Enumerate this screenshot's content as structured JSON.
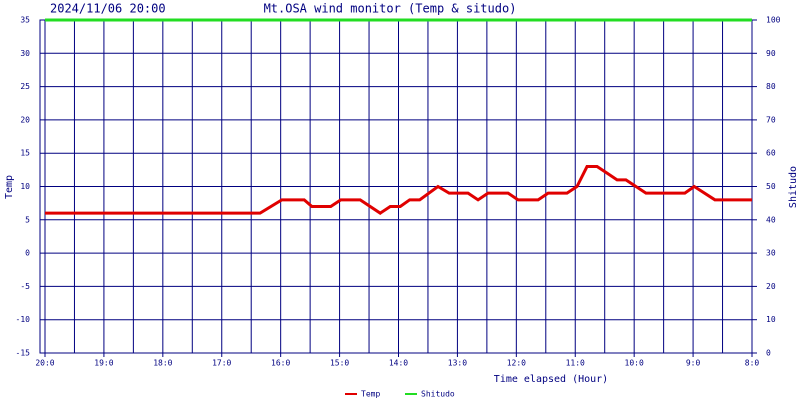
{
  "chart_data": {
    "type": "line",
    "title": "Mt.OSA wind monitor (Temp & situdo)",
    "subtitle": "2024/11/06 20:00",
    "xlabel": "Time elapsed (Hour)",
    "ylabel": "Temp",
    "y2label": "Shitudo",
    "xlim": [
      0,
      12
    ],
    "xticks": [
      {
        "value": 0,
        "label": "20:0"
      },
      {
        "value": 1,
        "label": "19:0"
      },
      {
        "value": 2,
        "label": "18:0"
      },
      {
        "value": 3,
        "label": "17:0"
      },
      {
        "value": 4,
        "label": "16:0"
      },
      {
        "value": 5,
        "label": "15:0"
      },
      {
        "value": 6,
        "label": "14:0"
      },
      {
        "value": 7,
        "label": "13:0"
      },
      {
        "value": 8,
        "label": "12:0"
      },
      {
        "value": 9,
        "label": "11:0"
      },
      {
        "value": 10,
        "label": "10:0"
      },
      {
        "value": 11,
        "label": "9:0"
      },
      {
        "value": 12,
        "label": "8:0"
      }
    ],
    "ylim": [
      -15,
      35
    ],
    "yticks": [
      -15,
      -10,
      -5,
      0,
      5,
      10,
      15,
      20,
      25,
      30,
      35
    ],
    "y2lim": [
      0,
      100
    ],
    "y2ticks": [
      0,
      10,
      20,
      30,
      40,
      50,
      60,
      70,
      80,
      90,
      100
    ],
    "grid": true,
    "legend": "bottom",
    "series": [
      {
        "name": "Temp",
        "color": "#e00000",
        "x": [
          0,
          3.65,
          4.02,
          4.4,
          4.53,
          4.85,
          5.02,
          5.35,
          5.69,
          5.86,
          6.03,
          6.19,
          6.36,
          6.67,
          6.86,
          7.18,
          7.35,
          7.52,
          7.86,
          8.03,
          8.37,
          8.54,
          8.86,
          9.03,
          9.2,
          9.37,
          9.54,
          9.71,
          9.86,
          10.2,
          10.86,
          11.02,
          11.37,
          12
        ],
        "values": [
          6,
          6,
          8,
          8,
          7,
          7,
          8,
          8,
          6,
          7,
          7,
          8,
          8,
          10,
          9,
          9,
          8,
          9,
          9,
          8,
          8,
          9,
          9,
          10,
          13,
          13,
          12,
          11,
          11,
          9,
          9,
          10,
          8,
          8
        ]
      },
      {
        "name": "Shitudo",
        "color": "#22dd22",
        "axis": "y2",
        "x": [
          0,
          12
        ],
        "values": [
          100,
          100
        ]
      }
    ]
  }
}
